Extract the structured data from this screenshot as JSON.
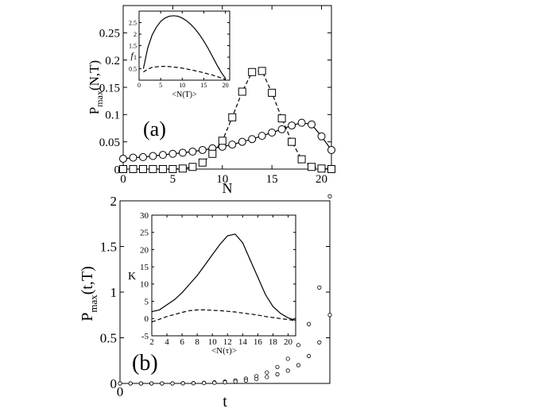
{
  "chart_data": [
    {
      "id": "panel-a",
      "type": "line",
      "panel_label": "(a)",
      "xlabel": "N",
      "ylabel": "P_max(N,T)",
      "xlim": [
        0,
        21
      ],
      "ylim": [
        0,
        0.3
      ],
      "x_ticks": [
        0,
        5,
        10,
        15,
        20
      ],
      "y_ticks": [
        0,
        0.05,
        0.1,
        0.15,
        0.2,
        0.25
      ],
      "x_tick_labels": [
        "0",
        "5",
        "10",
        "15",
        "20"
      ],
      "y_tick_labels": [
        "0",
        "0.05",
        "0.1",
        "0.15",
        "0.2",
        "0.25"
      ],
      "series": [
        {
          "name": "circles-solid",
          "line": "solid",
          "marker": "circle",
          "x": [
            0,
            1,
            2,
            3,
            4,
            5,
            6,
            7,
            8,
            9,
            10,
            11,
            12,
            13,
            14,
            15,
            16,
            17,
            18,
            19,
            20,
            21
          ],
          "y": [
            0.019,
            0.021,
            0.022,
            0.024,
            0.026,
            0.028,
            0.03,
            0.032,
            0.035,
            0.038,
            0.041,
            0.045,
            0.05,
            0.055,
            0.061,
            0.067,
            0.073,
            0.08,
            0.085,
            0.082,
            0.06,
            0.035
          ]
        },
        {
          "name": "squares-dashed",
          "line": "dashed",
          "marker": "square",
          "x": [
            0,
            1,
            2,
            3,
            4,
            5,
            6,
            7,
            8,
            9,
            10,
            11,
            12,
            13,
            14,
            15,
            16,
            17,
            18,
            19,
            20,
            21
          ],
          "y": [
            0,
            0,
            0,
            0,
            0,
            0,
            0.001,
            0.004,
            0.012,
            0.028,
            0.052,
            0.095,
            0.142,
            0.178,
            0.18,
            0.14,
            0.093,
            0.05,
            0.018,
            0.004,
            0.001,
            0
          ]
        }
      ]
    },
    {
      "id": "panel-a-inset",
      "type": "line",
      "xlabel": "<N(T)>",
      "ylabel": "f",
      "xlim": [
        0,
        21
      ],
      "ylim": [
        0,
        3
      ],
      "x_ticks": [
        0,
        5,
        10,
        15,
        20
      ],
      "y_ticks": [
        0.5,
        1,
        1.5,
        2,
        2.5
      ],
      "x_tick_labels": [
        "0",
        "5",
        "10",
        "15",
        "20"
      ],
      "y_tick_labels": [
        "0.5",
        "1",
        "1.5",
        "2",
        "2.5"
      ],
      "series": [
        {
          "name": "solid",
          "line": "solid",
          "x": [
            1,
            2,
            3,
            4,
            5,
            6,
            7,
            8,
            9,
            10,
            11,
            12,
            13,
            14,
            15,
            16,
            17,
            18,
            19,
            20
          ],
          "y": [
            0.5,
            1.4,
            1.95,
            2.3,
            2.55,
            2.7,
            2.78,
            2.8,
            2.78,
            2.7,
            2.58,
            2.42,
            2.22,
            1.98,
            1.7,
            1.38,
            1.03,
            0.68,
            0.35,
            0.08
          ]
        },
        {
          "name": "dashed",
          "line": "dashed",
          "x": [
            1,
            2,
            3,
            4,
            5,
            6,
            7,
            8,
            9,
            10,
            11,
            12,
            13,
            14,
            15,
            16,
            17,
            18,
            19,
            20
          ],
          "y": [
            0.35,
            0.48,
            0.55,
            0.58,
            0.6,
            0.6,
            0.59,
            0.57,
            0.55,
            0.52,
            0.49,
            0.45,
            0.41,
            0.37,
            0.32,
            0.27,
            0.22,
            0.16,
            0.1,
            0.03
          ]
        }
      ]
    },
    {
      "id": "panel-b",
      "type": "scatter",
      "panel_label": "(b)",
      "xlabel": "t",
      "ylabel": "P_max(t,T)",
      "xlim": [
        0,
        1
      ],
      "ylim": [
        0,
        2
      ],
      "x_ticks": [
        0
      ],
      "y_ticks": [
        0,
        0.5,
        1,
        1.5,
        2
      ],
      "x_tick_labels": [
        "0"
      ],
      "y_tick_labels": [
        "0",
        "0.5",
        "1",
        "1.5",
        "2"
      ],
      "series": [
        {
          "name": "upper",
          "marker": "circle",
          "x": [
            0,
            0.05,
            0.1,
            0.15,
            0.2,
            0.25,
            0.3,
            0.35,
            0.4,
            0.45,
            0.5,
            0.55,
            0.6,
            0.65,
            0.7,
            0.75,
            0.8,
            0.85,
            0.9,
            0.95,
            1.0
          ],
          "y": [
            0,
            0,
            0,
            0,
            0,
            0.001,
            0.002,
            0.004,
            0.007,
            0.012,
            0.02,
            0.033,
            0.052,
            0.08,
            0.12,
            0.18,
            0.27,
            0.42,
            0.65,
            1.05,
            2.05
          ]
        },
        {
          "name": "lower",
          "marker": "circle",
          "x": [
            0,
            0.05,
            0.1,
            0.15,
            0.2,
            0.25,
            0.3,
            0.35,
            0.4,
            0.45,
            0.5,
            0.55,
            0.6,
            0.65,
            0.7,
            0.75,
            0.8,
            0.85,
            0.9,
            0.95,
            1.0
          ],
          "y": [
            0,
            0,
            0,
            0,
            0,
            0,
            0.001,
            0.002,
            0.004,
            0.007,
            0.012,
            0.02,
            0.031,
            0.047,
            0.07,
            0.1,
            0.14,
            0.2,
            0.3,
            0.45,
            0.75
          ]
        }
      ]
    },
    {
      "id": "panel-b-inset",
      "type": "line",
      "xlabel": "<N(τ)>",
      "ylabel": "K",
      "xlim": [
        2,
        21
      ],
      "ylim": [
        -5,
        30
      ],
      "x_ticks": [
        2,
        4,
        6,
        8,
        10,
        12,
        14,
        16,
        18,
        20
      ],
      "y_ticks": [
        -5,
        0,
        5,
        10,
        15,
        20,
        25,
        30
      ],
      "x_tick_labels": [
        "2",
        "4",
        "6",
        "8",
        "10",
        "12",
        "14",
        "16",
        "18",
        "20"
      ],
      "y_tick_labels": [
        "-5",
        "0",
        "5",
        "10",
        "15",
        "20",
        "25",
        "30"
      ],
      "series": [
        {
          "name": "solid",
          "line": "solid",
          "x": [
            2,
            3,
            4,
            5,
            6,
            7,
            8,
            9,
            10,
            11,
            12,
            13,
            14,
            15,
            16,
            17,
            18,
            19,
            20,
            21
          ],
          "y": [
            2,
            2.5,
            4,
            5.5,
            7.5,
            10,
            12.5,
            15.5,
            18.5,
            21.5,
            24,
            24.5,
            22,
            17,
            12,
            7,
            3.5,
            1.5,
            0.2,
            -0.5
          ]
        },
        {
          "name": "dashed",
          "line": "dashed",
          "x": [
            2,
            3,
            4,
            5,
            6,
            7,
            8,
            9,
            10,
            11,
            12,
            13,
            14,
            15,
            16,
            17,
            18,
            19,
            20,
            21
          ],
          "y": [
            -1,
            -0.2,
            0.6,
            1.2,
            1.8,
            2.3,
            2.5,
            2.5,
            2.4,
            2.3,
            2.1,
            1.9,
            1.6,
            1.3,
            1,
            0.6,
            0.3,
            0,
            -0.3,
            -0.6
          ]
        }
      ]
    }
  ]
}
